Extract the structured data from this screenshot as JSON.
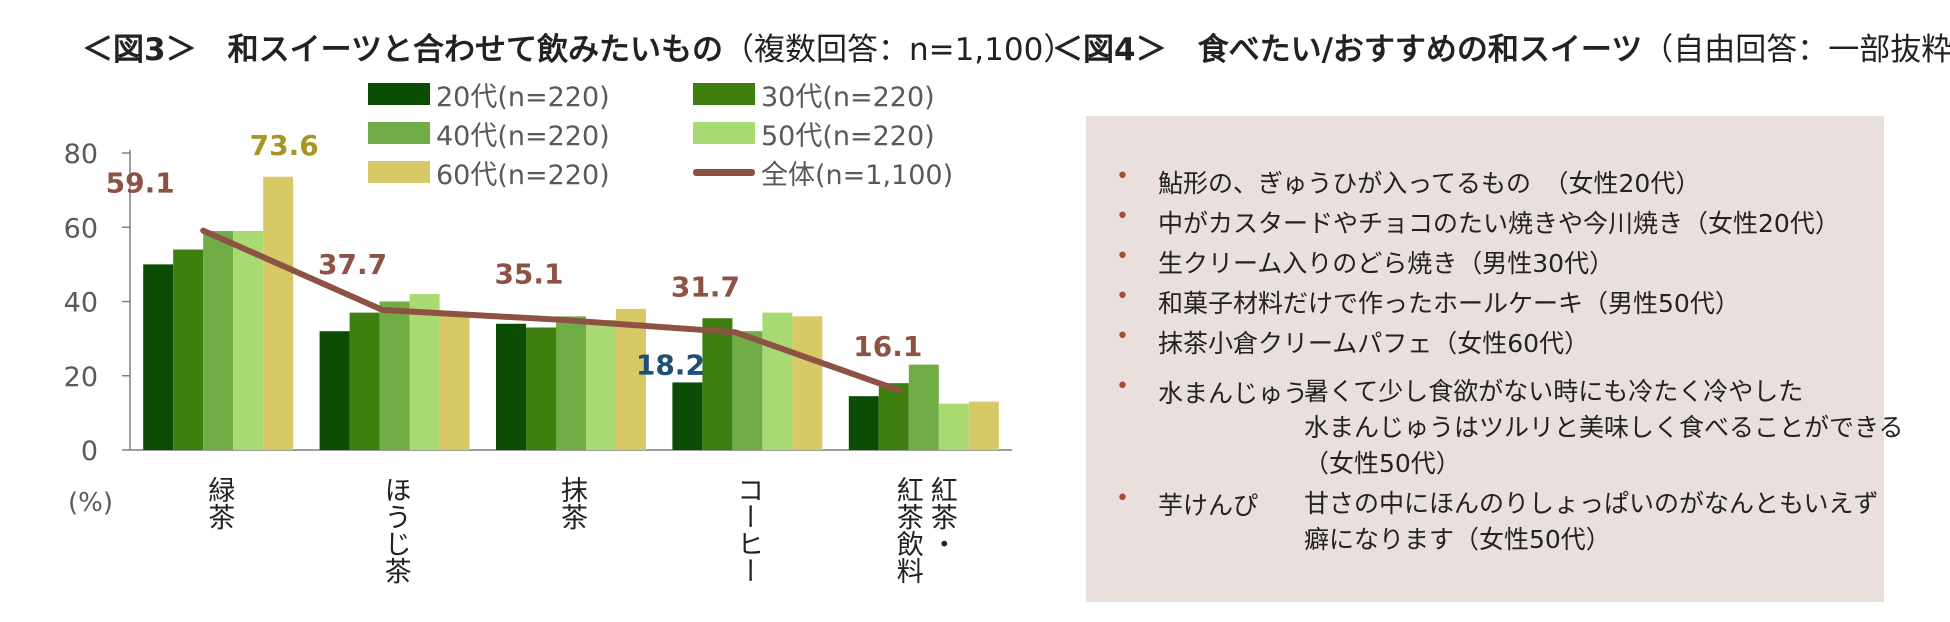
{
  "fig3": {
    "title_main": "＜図3＞　和スイーツと合わせて飲みたいもの",
    "title_sub": "（複数回答：n=1,100）",
    "unit": "(%)"
  },
  "fig4": {
    "title_main": "＜図4＞　食べたい/おすすめの和スイーツ",
    "title_sub": "（自由回答：一部抜粋）",
    "items": [
      "鮎形の、ぎゅうひが入ってるもの　（女性20代）",
      "中がカスタードやチョコのたい焼きや今川焼き（女性20代）",
      "生クリーム入りのどら焼き（男性30代）",
      "和菓子材料だけで作ったホールケーキ（男性50代）",
      "抹茶小倉クリームパフェ（女性60代）"
    ],
    "quotes": [
      {
        "term": "水まんじゅう",
        "lines": [
          "暑くて少し食欲がない時にも冷たく冷やした",
          "水まんじゅうはツルリと美味しく食べることができる",
          "（女性50代）"
        ]
      },
      {
        "term": "芋けんぴ",
        "lines": [
          "甘さの中にほんのりしょっぱいのがなんともいえず",
          "癖になります（女性50代）"
        ]
      }
    ]
  },
  "colors": {
    "20s": "#0b4d05",
    "30s": "#3f7f0f",
    "40s": "#70ad47",
    "50s": "#a9d973",
    "60s": "#d6c966",
    "overall": "#8e5245",
    "label_60s": "#a89524",
    "label_overall": "#8e5245",
    "label_blue": "#1f4e79",
    "bullet": "#a0503a"
  },
  "chart_data": {
    "type": "bar",
    "categories": [
      "緑茶",
      "ほうじ茶",
      "抹茶",
      "コーヒー",
      "紅茶・紅茶飲料"
    ],
    "category_label_columns": [
      [
        "緑茶"
      ],
      [
        "ほうじ茶"
      ],
      [
        "抹茶"
      ],
      [
        "コーヒー"
      ],
      [
        "紅茶・",
        "紅茶飲料"
      ]
    ],
    "series": [
      {
        "name": "20代(n=220)",
        "values": [
          50,
          32,
          34,
          18.2,
          14.5
        ]
      },
      {
        "name": "30代(n=220)",
        "values": [
          54,
          37,
          33,
          35.5,
          18
        ]
      },
      {
        "name": "40代(n=220)",
        "values": [
          59,
          40,
          36,
          32,
          23
        ]
      },
      {
        "name": "50代(n=220)",
        "values": [
          59,
          42,
          35,
          37,
          12.5
        ]
      },
      {
        "name": "60代(n=220)",
        "values": [
          73.6,
          37,
          38,
          36,
          13
        ]
      }
    ],
    "line_series": {
      "name": "全体(n=1,100)",
      "values": [
        59.1,
        37.7,
        35.1,
        31.7,
        16.1
      ]
    },
    "data_labels": [
      {
        "category": 0,
        "series": "60代(n=220)",
        "text": "73.6"
      },
      {
        "category": 0,
        "series": "全体(n=1,100)",
        "text": "59.1"
      },
      {
        "category": 1,
        "series": "全体(n=1,100)",
        "text": "37.7"
      },
      {
        "category": 2,
        "series": "全体(n=1,100)",
        "text": "35.1"
      },
      {
        "category": 3,
        "series": "20代(n=220)",
        "text": "18.2"
      },
      {
        "category": 3,
        "series": "全体(n=1,100)",
        "text": "31.7"
      },
      {
        "category": 4,
        "series": "全体(n=1,100)",
        "text": "16.1"
      }
    ],
    "ylim": [
      0,
      80
    ],
    "yticks": [
      0,
      20,
      40,
      60,
      80
    ],
    "grid": false,
    "legend_position": "top"
  }
}
